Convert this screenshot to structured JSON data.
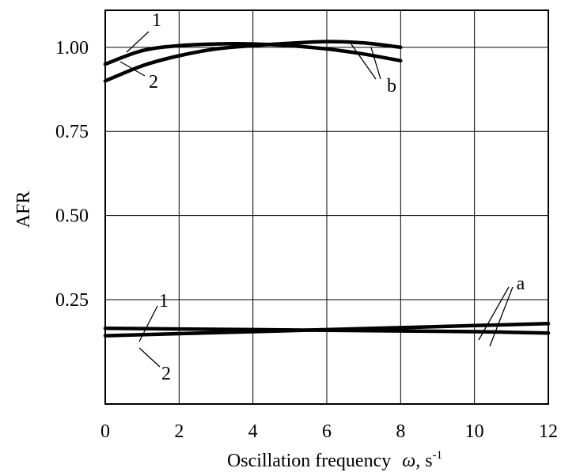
{
  "chart_data": {
    "type": "line",
    "title": "",
    "xlabel": "Oscillation frequency",
    "xlabel_symbol": "ω",
    "xlabel_unit": ", s",
    "xlabel_unit_exp": "-1",
    "ylabel": "AFR",
    "xlim": [
      0,
      12
    ],
    "ylim": [
      -0.06,
      1.11
    ],
    "x_ticks": [
      0,
      2,
      4,
      6,
      8,
      10,
      12
    ],
    "x_tick_labels": [
      "0",
      "2",
      "4",
      "6",
      "8",
      "10",
      "12"
    ],
    "y_ticks": [
      0.25,
      0.5,
      0.75,
      1.0
    ],
    "y_tick_labels": [
      "0.25",
      "0.50",
      "0.75",
      "1.00"
    ],
    "grid": true,
    "legend": "none",
    "series": [
      {
        "group": "b",
        "curve": "1",
        "x": [
          0,
          1,
          2,
          3,
          4,
          5,
          6,
          7,
          8
        ],
        "y": [
          0.95,
          0.99,
          1.005,
          1.01,
          1.01,
          1.005,
          0.995,
          0.98,
          0.96
        ]
      },
      {
        "group": "b",
        "curve": "2",
        "x": [
          0,
          1,
          2,
          3,
          4,
          5,
          6,
          7,
          8
        ],
        "y": [
          0.9,
          0.945,
          0.975,
          0.995,
          1.005,
          1.012,
          1.017,
          1.013,
          1.0
        ]
      },
      {
        "group": "a",
        "curve": "1",
        "x": [
          0,
          2,
          4,
          6,
          8,
          10,
          12
        ],
        "y": [
          0.165,
          0.163,
          0.161,
          0.159,
          0.157,
          0.155,
          0.151
        ]
      },
      {
        "group": "a",
        "curve": "2",
        "x": [
          0,
          2,
          4,
          6,
          8,
          10,
          12
        ],
        "y": [
          0.143,
          0.149,
          0.155,
          0.161,
          0.167,
          0.173,
          0.179
        ]
      }
    ],
    "annotations": [
      {
        "text": "1",
        "target": "b-1"
      },
      {
        "text": "2",
        "target": "b-2"
      },
      {
        "text": "b",
        "target": "b"
      },
      {
        "text": "1",
        "target": "a-1"
      },
      {
        "text": "2",
        "target": "a-2"
      },
      {
        "text": "a",
        "target": "a"
      }
    ]
  }
}
